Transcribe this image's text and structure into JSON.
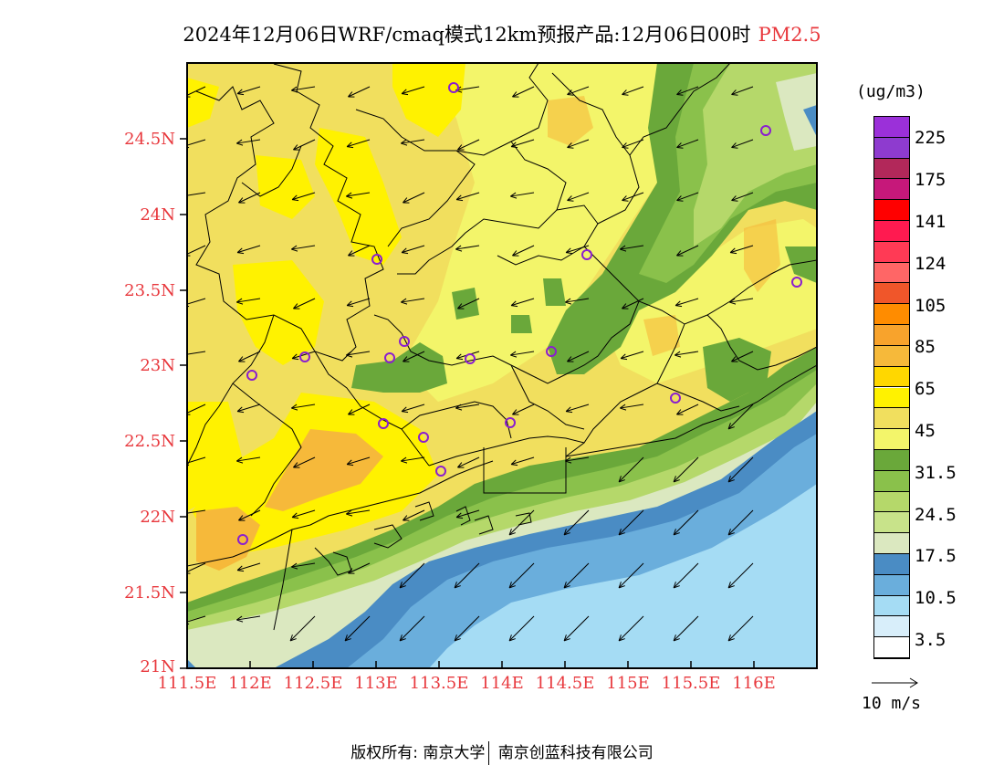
{
  "title": {
    "main": "2024年12月06日WRF/cmaq模式12km预报产品:12月06日00时",
    "species": "PM2.5"
  },
  "map": {
    "lat_labels": [
      "24.5N",
      "24N",
      "23.5N",
      "23N",
      "22.5N",
      "22N",
      "21.5N",
      "21N"
    ],
    "lon_labels": [
      "111.5E",
      "112E",
      "112.5E",
      "113E",
      "113.5E",
      "114E",
      "114.5E",
      "115E",
      "115.5E",
      "116E"
    ],
    "lat_range": [
      21.0,
      25.0
    ],
    "lon_range": [
      111.5,
      116.5
    ],
    "colors": {
      "frame": "#000000",
      "label": "#e8383d",
      "station": "#8a1ecf",
      "wind_arrow": "#000000"
    }
  },
  "colorbar": {
    "unit": "(ug/m3)",
    "labels": [
      "225",
      "175",
      "141",
      "124",
      "105",
      "85",
      "65",
      "45",
      "31.5",
      "24.5",
      "17.5",
      "10.5",
      "3.5"
    ],
    "colors": [
      "#9b30d9",
      "#8e3bcf",
      "#b2285a",
      "#c6187a",
      "#ff0000",
      "#ff1a50",
      "#ff3a55",
      "#ff6666",
      "#f0562a",
      "#ff8c00",
      "#f8a32c",
      "#f6b93a",
      "#ffd700",
      "#fff200",
      "#f1df5e",
      "#f3f56a",
      "#6aa83a",
      "#8ac14b",
      "#b5d86a",
      "#c8e38a",
      "#dbe8c0",
      "#4a8cc4",
      "#6aaedc",
      "#a5dcf4",
      "#d8eefa",
      "#ffffff"
    ]
  },
  "reference_vector": {
    "label": "10 m/s"
  },
  "copyright": {
    "prefix": "版权所有:",
    "org1": "南京大学",
    "org2": "南京创蓝科技有限公司"
  }
}
